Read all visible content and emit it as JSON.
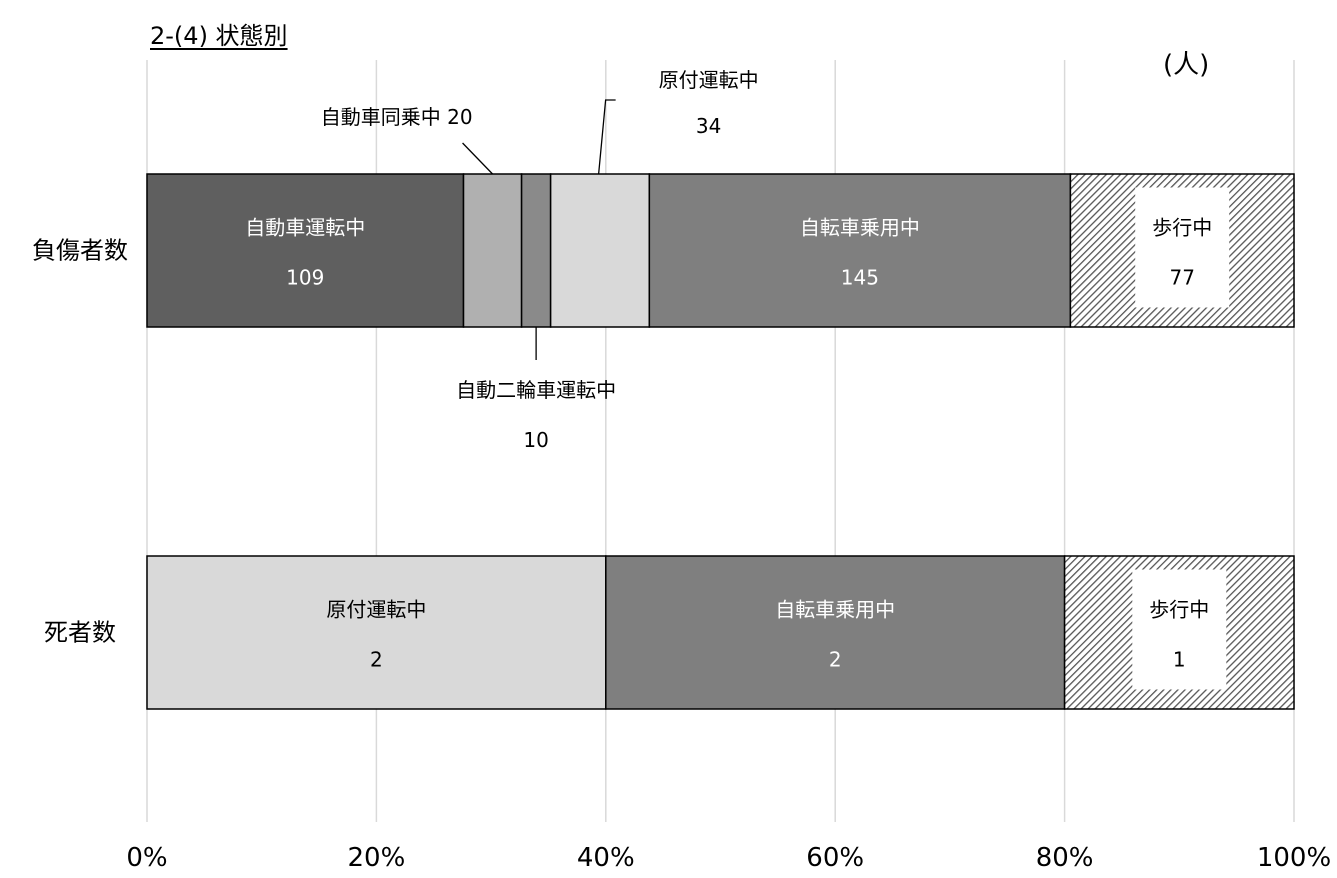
{
  "title": "2-(4) 状態別",
  "unit": "(人)",
  "chart_data": {
    "type": "bar",
    "orientation": "horizontal",
    "stacked": "percent",
    "categories": [
      "負傷者数",
      "死者数"
    ],
    "xlim": [
      0,
      100
    ],
    "x_ticks": [
      "0%",
      "20%",
      "40%",
      "60%",
      "80%",
      "100%"
    ],
    "grid": true,
    "legend": "none",
    "colors": {
      "自動車運転中": "#5f5f5f",
      "自動車同乗中": "#b0b0b0",
      "自動二輪車運転中": "#8a8a8a",
      "原付運転中": "#d9d9d9",
      "自転車乗用中": "#7f7f7f",
      "歩行中": "#ffffff",
      "gridline": "#d9d9d9",
      "text_on_dark": "#ffffff",
      "text_on_light": "#000000"
    },
    "rows": [
      {
        "category": "負傷者数",
        "segments": [
          {
            "label": "自動車運転中",
            "value": 109,
            "value_text": "109",
            "label_pos": "inside",
            "text_color": "#ffffff"
          },
          {
            "label": "自動車同乗中",
            "value": 20,
            "value_text": "20",
            "label_pos": "callout-top",
            "callout_text": "自動車同乗中 20"
          },
          {
            "label": "自動二輪車運転中",
            "value": 10,
            "value_text": "10",
            "label_pos": "callout-bottom"
          },
          {
            "label": "原付運転中",
            "value": 34,
            "value_text": "34",
            "label_pos": "callout-top-right"
          },
          {
            "label": "自転車乗用中",
            "value": 145,
            "value_text": "145",
            "label_pos": "inside",
            "text_color": "#ffffff"
          },
          {
            "label": "歩行中",
            "value": 77,
            "value_text": "77",
            "label_pos": "inside-box",
            "pattern": "hatch"
          }
        ]
      },
      {
        "category": "死者数",
        "segments": [
          {
            "label": "原付運転中",
            "value": 2,
            "value_text": "2",
            "label_pos": "inside",
            "text_color": "#000000"
          },
          {
            "label": "自転車乗用中",
            "value": 2,
            "value_text": "2",
            "label_pos": "inside",
            "text_color": "#ffffff"
          },
          {
            "label": "歩行中",
            "value": 1,
            "value_text": "1",
            "label_pos": "inside-box",
            "pattern": "hatch"
          }
        ]
      }
    ]
  }
}
